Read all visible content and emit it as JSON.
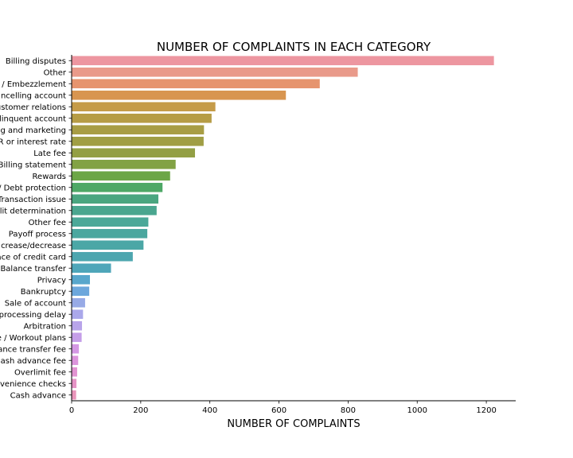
{
  "chart_data": {
    "type": "bar",
    "orientation": "horizontal",
    "title": "NUMBER OF COMPLAINTS IN EACH CATEGORY",
    "xlabel": "NUMBER OF COMPLAINTS",
    "ylabel": "",
    "xlim": [
      0,
      1285
    ],
    "xticks": [
      0,
      200,
      400,
      600,
      800,
      1000,
      1200
    ],
    "grid": false,
    "legend": "none",
    "categories": [
      "Billing disputes",
      "Other",
      "/ Embezzlement",
      "ncelling account",
      "ustomer relations",
      "linquent account",
      "g and marketing",
      "R or interest rate",
      "Late fee",
      "Billing statement",
      "Rewards",
      "/ Debt protection",
      "Transaction issue",
      "lit determination",
      "Other fee",
      "Payoff process",
      "crease/decrease",
      "ace of credit card",
      "Balance transfer",
      "Privacy",
      "Bankruptcy",
      "Sale of account",
      "processing delay",
      "Arbitration",
      "e / Workout plans",
      "ance transfer fee",
      "ash advance fee",
      "Overlimit fee",
      "venience checks",
      "Cash advance"
    ],
    "values": [
      1222,
      828,
      718,
      620,
      416,
      405,
      383,
      382,
      357,
      301,
      285,
      263,
      251,
      246,
      222,
      219,
      208,
      177,
      114,
      53,
      51,
      39,
      33,
      30,
      29,
      21,
      19,
      16,
      14,
      13
    ],
    "colors": [
      "#ed96a0",
      "#e99a8a",
      "#e6946e",
      "#d89550",
      "#c59b48",
      "#b69c45",
      "#a89d44",
      "#a09e44",
      "#939f44",
      "#82a244",
      "#6ca647",
      "#4ea866",
      "#4aa680",
      "#4aa68f",
      "#4ba898",
      "#4ba79f",
      "#4ba7a6",
      "#4da6af",
      "#4fa6b9",
      "#58a7cc",
      "#6da7dc",
      "#97aae6",
      "#aaa8ea",
      "#b8a4ea",
      "#c59ee8",
      "#d498e4",
      "#dc94dc",
      "#e293d2",
      "#e594c6",
      "#ea95bb"
    ]
  }
}
